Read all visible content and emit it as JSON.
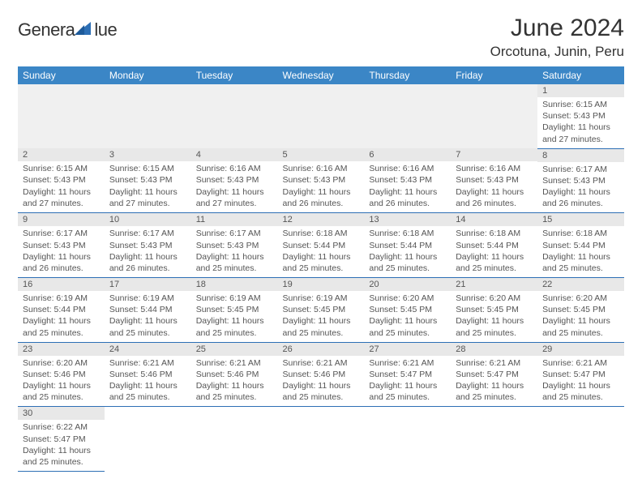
{
  "logo": {
    "text_general": "Genera",
    "text_blue": "lue"
  },
  "title": "June 2024",
  "location": "Orcotuna, Junin, Peru",
  "colors": {
    "header_bg": "#3b86c6",
    "header_text": "#ffffff",
    "cell_border": "#2d6fb5",
    "daynum_bg": "#e8e8e8",
    "body_text": "#555555",
    "page_bg": "#ffffff",
    "logo_blue": "#2d6fb5"
  },
  "typography": {
    "title_fontsize": 30,
    "location_fontsize": 17,
    "header_fontsize": 12,
    "daynum_fontsize": 11,
    "body_fontsize": 10.5
  },
  "day_names": [
    "Sunday",
    "Monday",
    "Tuesday",
    "Wednesday",
    "Thursday",
    "Friday",
    "Saturday"
  ],
  "weeks": [
    [
      null,
      null,
      null,
      null,
      null,
      null,
      {
        "n": "1",
        "sunrise": "Sunrise: 6:15 AM",
        "sunset": "Sunset: 5:43 PM",
        "daylight": "Daylight: 11 hours and 27 minutes."
      }
    ],
    [
      {
        "n": "2",
        "sunrise": "Sunrise: 6:15 AM",
        "sunset": "Sunset: 5:43 PM",
        "daylight": "Daylight: 11 hours and 27 minutes."
      },
      {
        "n": "3",
        "sunrise": "Sunrise: 6:15 AM",
        "sunset": "Sunset: 5:43 PM",
        "daylight": "Daylight: 11 hours and 27 minutes."
      },
      {
        "n": "4",
        "sunrise": "Sunrise: 6:16 AM",
        "sunset": "Sunset: 5:43 PM",
        "daylight": "Daylight: 11 hours and 27 minutes."
      },
      {
        "n": "5",
        "sunrise": "Sunrise: 6:16 AM",
        "sunset": "Sunset: 5:43 PM",
        "daylight": "Daylight: 11 hours and 26 minutes."
      },
      {
        "n": "6",
        "sunrise": "Sunrise: 6:16 AM",
        "sunset": "Sunset: 5:43 PM",
        "daylight": "Daylight: 11 hours and 26 minutes."
      },
      {
        "n": "7",
        "sunrise": "Sunrise: 6:16 AM",
        "sunset": "Sunset: 5:43 PM",
        "daylight": "Daylight: 11 hours and 26 minutes."
      },
      {
        "n": "8",
        "sunrise": "Sunrise: 6:17 AM",
        "sunset": "Sunset: 5:43 PM",
        "daylight": "Daylight: 11 hours and 26 minutes."
      }
    ],
    [
      {
        "n": "9",
        "sunrise": "Sunrise: 6:17 AM",
        "sunset": "Sunset: 5:43 PM",
        "daylight": "Daylight: 11 hours and 26 minutes."
      },
      {
        "n": "10",
        "sunrise": "Sunrise: 6:17 AM",
        "sunset": "Sunset: 5:43 PM",
        "daylight": "Daylight: 11 hours and 26 minutes."
      },
      {
        "n": "11",
        "sunrise": "Sunrise: 6:17 AM",
        "sunset": "Sunset: 5:43 PM",
        "daylight": "Daylight: 11 hours and 25 minutes."
      },
      {
        "n": "12",
        "sunrise": "Sunrise: 6:18 AM",
        "sunset": "Sunset: 5:44 PM",
        "daylight": "Daylight: 11 hours and 25 minutes."
      },
      {
        "n": "13",
        "sunrise": "Sunrise: 6:18 AM",
        "sunset": "Sunset: 5:44 PM",
        "daylight": "Daylight: 11 hours and 25 minutes."
      },
      {
        "n": "14",
        "sunrise": "Sunrise: 6:18 AM",
        "sunset": "Sunset: 5:44 PM",
        "daylight": "Daylight: 11 hours and 25 minutes."
      },
      {
        "n": "15",
        "sunrise": "Sunrise: 6:18 AM",
        "sunset": "Sunset: 5:44 PM",
        "daylight": "Daylight: 11 hours and 25 minutes."
      }
    ],
    [
      {
        "n": "16",
        "sunrise": "Sunrise: 6:19 AM",
        "sunset": "Sunset: 5:44 PM",
        "daylight": "Daylight: 11 hours and 25 minutes."
      },
      {
        "n": "17",
        "sunrise": "Sunrise: 6:19 AM",
        "sunset": "Sunset: 5:44 PM",
        "daylight": "Daylight: 11 hours and 25 minutes."
      },
      {
        "n": "18",
        "sunrise": "Sunrise: 6:19 AM",
        "sunset": "Sunset: 5:45 PM",
        "daylight": "Daylight: 11 hours and 25 minutes."
      },
      {
        "n": "19",
        "sunrise": "Sunrise: 6:19 AM",
        "sunset": "Sunset: 5:45 PM",
        "daylight": "Daylight: 11 hours and 25 minutes."
      },
      {
        "n": "20",
        "sunrise": "Sunrise: 6:20 AM",
        "sunset": "Sunset: 5:45 PM",
        "daylight": "Daylight: 11 hours and 25 minutes."
      },
      {
        "n": "21",
        "sunrise": "Sunrise: 6:20 AM",
        "sunset": "Sunset: 5:45 PM",
        "daylight": "Daylight: 11 hours and 25 minutes."
      },
      {
        "n": "22",
        "sunrise": "Sunrise: 6:20 AM",
        "sunset": "Sunset: 5:45 PM",
        "daylight": "Daylight: 11 hours and 25 minutes."
      }
    ],
    [
      {
        "n": "23",
        "sunrise": "Sunrise: 6:20 AM",
        "sunset": "Sunset: 5:46 PM",
        "daylight": "Daylight: 11 hours and 25 minutes."
      },
      {
        "n": "24",
        "sunrise": "Sunrise: 6:21 AM",
        "sunset": "Sunset: 5:46 PM",
        "daylight": "Daylight: 11 hours and 25 minutes."
      },
      {
        "n": "25",
        "sunrise": "Sunrise: 6:21 AM",
        "sunset": "Sunset: 5:46 PM",
        "daylight": "Daylight: 11 hours and 25 minutes."
      },
      {
        "n": "26",
        "sunrise": "Sunrise: 6:21 AM",
        "sunset": "Sunset: 5:46 PM",
        "daylight": "Daylight: 11 hours and 25 minutes."
      },
      {
        "n": "27",
        "sunrise": "Sunrise: 6:21 AM",
        "sunset": "Sunset: 5:47 PM",
        "daylight": "Daylight: 11 hours and 25 minutes."
      },
      {
        "n": "28",
        "sunrise": "Sunrise: 6:21 AM",
        "sunset": "Sunset: 5:47 PM",
        "daylight": "Daylight: 11 hours and 25 minutes."
      },
      {
        "n": "29",
        "sunrise": "Sunrise: 6:21 AM",
        "sunset": "Sunset: 5:47 PM",
        "daylight": "Daylight: 11 hours and 25 minutes."
      }
    ],
    [
      {
        "n": "30",
        "sunrise": "Sunrise: 6:22 AM",
        "sunset": "Sunset: 5:47 PM",
        "daylight": "Daylight: 11 hours and 25 minutes."
      },
      null,
      null,
      null,
      null,
      null,
      null
    ]
  ]
}
